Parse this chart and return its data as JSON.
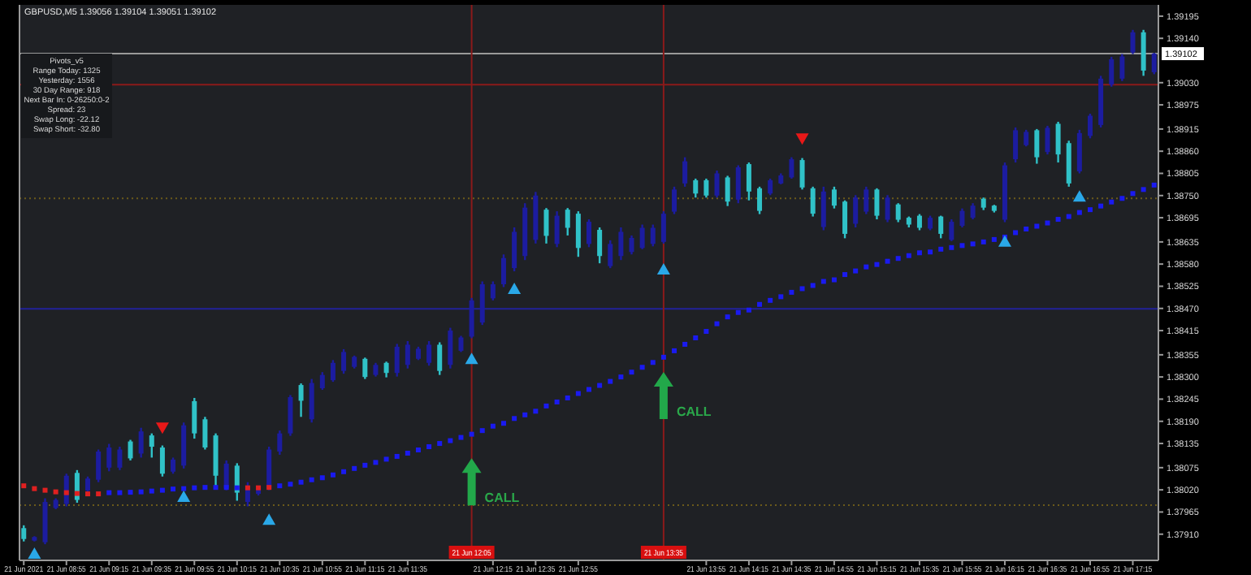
{
  "chart_data": {
    "type": "candlestick",
    "title": "GBPUSD,M5  1.39056 1.39104 1.39051 1.39102",
    "xlim": [
      "2021-06-21T08:33",
      "2021-06-21T17:27"
    ],
    "xticks": [
      {
        "value": "2021-06-21T08:35",
        "label": "21 Jun 2021"
      },
      {
        "value": "2021-06-21T08:55",
        "label": "21 Jun 08:55"
      },
      {
        "value": "2021-06-21T09:15",
        "label": "21 Jun 09:15"
      },
      {
        "value": "2021-06-21T09:35",
        "label": "21 Jun 09:35"
      },
      {
        "value": "2021-06-21T09:55",
        "label": "21 Jun 09:55"
      },
      {
        "value": "2021-06-21T10:15",
        "label": "21 Jun 10:15"
      },
      {
        "value": "2021-06-21T10:35",
        "label": "21 Jun 10:35"
      },
      {
        "value": "2021-06-21T10:55",
        "label": "21 Jun 10:55"
      },
      {
        "value": "2021-06-21T11:15",
        "label": "21 Jun 11:15"
      },
      {
        "value": "2021-06-21T11:35",
        "label": "21 Jun 11:35"
      },
      {
        "value": "2021-06-21T12:15",
        "label": "21 Jun 12:15"
      },
      {
        "value": "2021-06-21T12:35",
        "label": "21 Jun 12:35"
      },
      {
        "value": "2021-06-21T12:55",
        "label": "21 Jun 12:55"
      },
      {
        "value": "2021-06-21T13:55",
        "label": "21 Jun 13:55"
      },
      {
        "value": "2021-06-21T14:15",
        "label": "21 Jun 14:15"
      },
      {
        "value": "2021-06-21T14:35",
        "label": "21 Jun 14:35"
      },
      {
        "value": "2021-06-21T14:55",
        "label": "21 Jun 14:55"
      },
      {
        "value": "2021-06-21T15:15",
        "label": "21 Jun 15:15"
      },
      {
        "value": "2021-06-21T15:35",
        "label": "21 Jun 15:35"
      },
      {
        "value": "2021-06-21T15:55",
        "label": "21 Jun 15:55"
      },
      {
        "value": "2021-06-21T16:15",
        "label": "21 Jun 16:15"
      },
      {
        "value": "2021-06-21T16:35",
        "label": "21 Jun 16:35"
      },
      {
        "value": "2021-06-21T16:55",
        "label": "21 Jun 16:55"
      },
      {
        "value": "2021-06-21T17:15",
        "label": "21 Jun 17:15"
      }
    ],
    "ylim": [
      1.37845,
      1.39223
    ],
    "yticks": [
      1.39195,
      {
        "value": 1.3914,
        "label": "1.39140"
      },
      {
        "value": 1.3903,
        "label": "1.39030"
      },
      1.38975,
      1.38915,
      {
        "value": 1.3886,
        "label": "1.38860"
      },
      1.38805,
      {
        "value": 1.3875,
        "label": "1.38750"
      },
      1.38695,
      1.38635,
      {
        "value": 1.3858,
        "label": "1.38580"
      },
      1.38525,
      {
        "value": 1.3847,
        "label": "1.38470"
      },
      1.38415,
      1.38355,
      {
        "value": 1.383,
        "label": "1.38300"
      },
      1.38245,
      {
        "value": 1.3819,
        "label": "1.38190"
      },
      1.38135,
      1.38075,
      {
        "value": 1.3802,
        "label": "1.38020"
      },
      1.37965,
      {
        "value": 1.3791,
        "label": "1.37910"
      }
    ],
    "series": [
      {
        "color": "#1c1ca0",
        "x": [
          "2021-06-21T08:40",
          "2021-06-21T08:45",
          "2021-06-21T08:50",
          "2021-06-21T08:55",
          "2021-06-21T09:05",
          "2021-06-21T09:10",
          "2021-06-21T09:15",
          "2021-06-21T09:20",
          "2021-06-21T09:30",
          "2021-06-21T09:45",
          "2021-06-21T09:50",
          "2021-06-21T10:10",
          "2021-06-21T10:20",
          "2021-06-21T10:25",
          "2021-06-21T10:30",
          "2021-06-21T10:35",
          "2021-06-21T10:40",
          "2021-06-21T10:50",
          "2021-06-21T10:55",
          "2021-06-21T11:00",
          "2021-06-21T11:05",
          "2021-06-21T11:10",
          "2021-06-21T11:20",
          "2021-06-21T11:30",
          "2021-06-21T11:35",
          "2021-06-21T11:40",
          "2021-06-21T11:45",
          "2021-06-21T11:55",
          "2021-06-21T12:00",
          "2021-06-21T12:05",
          "2021-06-21T12:10",
          "2021-06-21T12:15",
          "2021-06-21T12:20",
          "2021-06-21T12:25",
          "2021-06-21T12:30",
          "2021-06-21T12:35",
          "2021-06-21T12:45",
          "2021-06-21T13:00",
          "2021-06-21T13:10",
          "2021-06-21T13:15",
          "2021-06-21T13:20",
          "2021-06-21T13:25",
          "2021-06-21T13:30",
          "2021-06-21T13:35",
          "2021-06-21T13:40",
          "2021-06-21T13:45",
          "2021-06-21T14:00",
          "2021-06-21T14:10",
          "2021-06-21T14:25",
          "2021-06-21T14:30",
          "2021-06-21T14:35",
          "2021-06-21T14:50",
          "2021-06-21T15:05",
          "2021-06-21T15:10",
          "2021-06-21T15:20",
          "2021-06-21T15:40",
          "2021-06-21T15:50",
          "2021-06-21T15:55",
          "2021-06-21T16:00",
          "2021-06-21T16:15",
          "2021-06-21T16:20",
          "2021-06-21T16:25",
          "2021-06-21T16:35",
          "2021-06-21T16:50",
          "2021-06-21T16:55",
          "2021-06-21T17:00",
          "2021-06-21T17:05",
          "2021-06-21T17:10",
          "2021-06-21T17:15",
          "2021-06-21T17:25"
        ],
        "ohlc": [
          [
            1.37894,
            1.37905,
            1.37892,
            1.37903
          ],
          [
            1.3789,
            1.37999,
            1.37885,
            1.3799
          ],
          [
            1.37975,
            1.37999,
            1.37972,
            1.37995
          ],
          [
            1.37985,
            1.3806,
            1.37979,
            1.38055
          ],
          [
            1.38018,
            1.38053,
            1.38013,
            1.38048
          ],
          [
            1.38045,
            1.3812,
            1.38039,
            1.38115
          ],
          [
            1.38075,
            1.38134,
            1.38066,
            1.38125
          ],
          [
            1.38075,
            1.38127,
            1.38069,
            1.3812
          ],
          [
            1.3811,
            1.38174,
            1.381,
            1.38165
          ],
          [
            1.38065,
            1.381,
            1.3806,
            1.38095
          ],
          [
            1.3808,
            1.38187,
            1.38073,
            1.3818
          ],
          [
            1.38025,
            1.38093,
            1.38019,
            1.38085
          ],
          [
            1.3799,
            1.38039,
            1.37979,
            1.3803
          ],
          [
            1.3801,
            1.38026,
            1.38006,
            1.3802
          ],
          [
            1.38025,
            1.38127,
            1.38019,
            1.3812
          ],
          [
            1.38115,
            1.38167,
            1.38107,
            1.3816
          ],
          [
            1.3816,
            1.38255,
            1.38154,
            1.3825
          ],
          [
            1.38195,
            1.38295,
            1.38187,
            1.38285
          ],
          [
            1.38272,
            1.38312,
            1.38268,
            1.38305
          ],
          [
            1.38292,
            1.38342,
            1.38288,
            1.38335
          ],
          [
            1.38315,
            1.38369,
            1.38308,
            1.38362
          ],
          [
            1.38325,
            1.38353,
            1.38321,
            1.3835
          ],
          [
            1.38305,
            1.38335,
            1.38301,
            1.3833
          ],
          [
            1.3831,
            1.38382,
            1.38301,
            1.38375
          ],
          [
            1.3833,
            1.38389,
            1.38321,
            1.3838
          ],
          [
            1.38345,
            1.38375,
            1.38342,
            1.3837
          ],
          [
            1.38335,
            1.38389,
            1.38328,
            1.3838
          ],
          [
            1.3833,
            1.38422,
            1.38321,
            1.38415
          ],
          [
            1.38365,
            1.38402,
            1.38362,
            1.38398
          ],
          [
            1.384,
            1.38496,
            1.38396,
            1.3849
          ],
          [
            1.38435,
            1.38537,
            1.38429,
            1.3853
          ],
          [
            1.38495,
            1.38537,
            1.3849,
            1.3853
          ],
          [
            1.3853,
            1.38604,
            1.38523,
            1.38595
          ],
          [
            1.3857,
            1.38671,
            1.38562,
            1.3866
          ],
          [
            1.386,
            1.38731,
            1.3859,
            1.3872
          ],
          [
            1.3864,
            1.38759,
            1.38631,
            1.3875
          ],
          [
            1.3863,
            1.38711,
            1.38622,
            1.387
          ],
          [
            1.3863,
            1.38691,
            1.38622,
            1.38685
          ],
          [
            1.38575,
            1.38639,
            1.3857,
            1.3863
          ],
          [
            1.386,
            1.38671,
            1.3859,
            1.3866
          ],
          [
            1.3861,
            1.38651,
            1.38604,
            1.38645
          ],
          [
            1.3862,
            1.38678,
            1.38617,
            1.3867
          ],
          [
            1.3863,
            1.38678,
            1.38624,
            1.3867
          ],
          [
            1.38635,
            1.38711,
            1.38631,
            1.38705
          ],
          [
            1.3871,
            1.38772,
            1.38704,
            1.38765
          ],
          [
            1.3878,
            1.38845,
            1.38772,
            1.38835
          ],
          [
            1.3875,
            1.38812,
            1.38745,
            1.38805
          ],
          [
            1.3874,
            1.38825,
            1.38731,
            1.3882
          ],
          [
            1.38755,
            1.38792,
            1.38751,
            1.38788
          ],
          [
            1.3878,
            1.38805,
            1.38778,
            1.388
          ],
          [
            1.38795,
            1.38845,
            1.38792,
            1.3884
          ],
          [
            1.38672,
            1.38772,
            1.38664,
            1.3876
          ],
          [
            1.3868,
            1.38751,
            1.38671,
            1.38745
          ],
          [
            1.3871,
            1.38772,
            1.38704,
            1.38765
          ],
          [
            1.3869,
            1.38751,
            1.38684,
            1.38745
          ],
          [
            1.38668,
            1.387,
            1.38664,
            1.38695
          ],
          [
            1.3864,
            1.38691,
            1.38637,
            1.38685
          ],
          [
            1.38675,
            1.38718,
            1.38671,
            1.38712
          ],
          [
            1.38695,
            1.38731,
            1.38691,
            1.38725
          ],
          [
            1.3869,
            1.38832,
            1.38684,
            1.38825
          ],
          [
            1.3884,
            1.38919,
            1.38832,
            1.38912
          ],
          [
            1.38875,
            1.38913,
            1.38872,
            1.38908
          ],
          [
            1.38858,
            1.38923,
            1.38852,
            1.38918
          ],
          [
            1.3881,
            1.38913,
            1.38805,
            1.38905
          ],
          [
            1.38898,
            1.38953,
            1.38892,
            1.38948
          ],
          [
            1.38925,
            1.39047,
            1.38919,
            1.3904
          ],
          [
            1.39025,
            1.39094,
            1.3902,
            1.39088
          ],
          [
            1.3904,
            1.39101,
            1.39034,
            1.39095
          ],
          [
            1.39105,
            1.39161,
            1.39101,
            1.39155
          ],
          [
            1.39056,
            1.39104,
            1.39051,
            1.39102
          ]
        ]
      },
      {
        "color": "#30c2c8",
        "x": [
          "2021-06-21T08:35",
          "2021-06-21T09:00",
          "2021-06-21T09:25",
          "2021-06-21T09:35",
          "2021-06-21T09:40",
          "2021-06-21T09:55",
          "2021-06-21T10:00",
          "2021-06-21T10:05",
          "2021-06-21T10:15",
          "2021-06-21T10:45",
          "2021-06-21T11:15",
          "2021-06-21T11:25",
          "2021-06-21T11:50",
          "2021-06-21T12:40",
          "2021-06-21T12:50",
          "2021-06-21T12:55",
          "2021-06-21T13:05",
          "2021-06-21T13:50",
          "2021-06-21T13:55",
          "2021-06-21T14:05",
          "2021-06-21T14:15",
          "2021-06-21T14:20",
          "2021-06-21T14:40",
          "2021-06-21T14:45",
          "2021-06-21T14:55",
          "2021-06-21T15:00",
          "2021-06-21T15:15",
          "2021-06-21T15:25",
          "2021-06-21T15:30",
          "2021-06-21T15:35",
          "2021-06-21T15:45",
          "2021-06-21T16:05",
          "2021-06-21T16:10",
          "2021-06-21T16:30",
          "2021-06-21T16:40",
          "2021-06-21T16:45",
          "2021-06-21T17:20"
        ],
        "ohlc": [
          [
            1.37925,
            1.37932,
            1.37892,
            1.37898
          ],
          [
            1.38062,
            1.38069,
            1.37988,
            1.37995
          ],
          [
            1.3814,
            1.38144,
            1.38093,
            1.38098
          ],
          [
            1.38155,
            1.3816,
            1.381,
            1.38127
          ],
          [
            1.38125,
            1.3813,
            1.38053,
            1.3806
          ],
          [
            1.3824,
            1.38248,
            1.38147,
            1.3816
          ],
          [
            1.38195,
            1.38201,
            1.3812,
            1.38125
          ],
          [
            1.38155,
            1.3816,
            1.38026,
            1.38055
          ],
          [
            1.3808,
            1.38086,
            1.37993,
            1.38013
          ],
          [
            1.3828,
            1.38284,
            1.38201,
            1.38241
          ],
          [
            1.38345,
            1.38348,
            1.38295,
            1.383
          ],
          [
            1.38335,
            1.38338,
            1.38299,
            1.3831
          ],
          [
            1.3838,
            1.38386,
            1.38305,
            1.38315
          ],
          [
            1.38715,
            1.38719,
            1.38631,
            1.3865
          ],
          [
            1.38715,
            1.38719,
            1.38651,
            1.3867
          ],
          [
            1.38705,
            1.38711,
            1.38598,
            1.3862
          ],
          [
            1.38665,
            1.38671,
            1.38582,
            1.386
          ],
          [
            1.38788,
            1.38792,
            1.38745,
            1.38755
          ],
          [
            1.38788,
            1.38792,
            1.38745,
            1.3875
          ],
          [
            1.38795,
            1.38799,
            1.38724,
            1.38735
          ],
          [
            1.38828,
            1.38832,
            1.38738,
            1.3876
          ],
          [
            1.38768,
            1.38772,
            1.38704,
            1.38712
          ],
          [
            1.38838,
            1.38843,
            1.38765,
            1.3877
          ],
          [
            1.38768,
            1.38772,
            1.38698,
            1.38705
          ],
          [
            1.38765,
            1.38772,
            1.38718,
            1.38725
          ],
          [
            1.38735,
            1.38738,
            1.38644,
            1.38655
          ],
          [
            1.38765,
            1.38768,
            1.38691,
            1.387
          ],
          [
            1.38728,
            1.38731,
            1.38684,
            1.3869
          ],
          [
            1.38695,
            1.38698,
            1.38671,
            1.38678
          ],
          [
            1.387,
            1.38704,
            1.38664,
            1.3867
          ],
          [
            1.38698,
            1.387,
            1.38644,
            1.38655
          ],
          [
            1.38742,
            1.38745,
            1.38714,
            1.3872
          ],
          [
            1.38725,
            1.38727,
            1.38708,
            1.38712
          ],
          [
            1.38912,
            1.38915,
            1.38829,
            1.38845
          ],
          [
            1.38928,
            1.38933,
            1.38832,
            1.38852
          ],
          [
            1.3888,
            1.38886,
            1.38772,
            1.3878
          ],
          [
            1.39155,
            1.39161,
            1.39047,
            1.3906
          ]
        ]
      },
      {
        "type": "scatter",
        "marker": "square",
        "color": "#1a1af0",
        "x": [
          "2021-06-21T09:15",
          "2021-06-21T09:20",
          "2021-06-21T09:25",
          "2021-06-21T09:30",
          "2021-06-21T09:35",
          "2021-06-21T09:40",
          "2021-06-21T09:45",
          "2021-06-21T09:50",
          "2021-06-21T09:55",
          "2021-06-21T10:00",
          "2021-06-21T10:05",
          "2021-06-21T10:10",
          "2021-06-21T10:15",
          "2021-06-21T10:35",
          "2021-06-21T10:40",
          "2021-06-21T10:45",
          "2021-06-21T10:50",
          "2021-06-21T10:55",
          "2021-06-21T11:00",
          "2021-06-21T11:05",
          "2021-06-21T11:10",
          "2021-06-21T11:15",
          "2021-06-21T11:20",
          "2021-06-21T11:25",
          "2021-06-21T11:30",
          "2021-06-21T11:35",
          "2021-06-21T11:40",
          "2021-06-21T11:45",
          "2021-06-21T11:50",
          "2021-06-21T11:55",
          "2021-06-21T12:00",
          "2021-06-21T12:05",
          "2021-06-21T12:10",
          "2021-06-21T12:15",
          "2021-06-21T12:20",
          "2021-06-21T12:25",
          "2021-06-21T12:30",
          "2021-06-21T12:35",
          "2021-06-21T12:40",
          "2021-06-21T12:45",
          "2021-06-21T12:50",
          "2021-06-21T12:55",
          "2021-06-21T13:00",
          "2021-06-21T13:05",
          "2021-06-21T13:10",
          "2021-06-21T13:15",
          "2021-06-21T13:20",
          "2021-06-21T13:25",
          "2021-06-21T13:30",
          "2021-06-21T13:35",
          "2021-06-21T13:40",
          "2021-06-21T13:45",
          "2021-06-21T13:50",
          "2021-06-21T13:55",
          "2021-06-21T14:00",
          "2021-06-21T14:05",
          "2021-06-21T14:10",
          "2021-06-21T14:15",
          "2021-06-21T14:20",
          "2021-06-21T14:25",
          "2021-06-21T14:30",
          "2021-06-21T14:35",
          "2021-06-21T14:40",
          "2021-06-21T14:45",
          "2021-06-21T14:50",
          "2021-06-21T14:55",
          "2021-06-21T15:00",
          "2021-06-21T15:05",
          "2021-06-21T15:10",
          "2021-06-21T15:15",
          "2021-06-21T15:20",
          "2021-06-21T15:25",
          "2021-06-21T15:30",
          "2021-06-21T15:35",
          "2021-06-21T15:40",
          "2021-06-21T15:45",
          "2021-06-21T15:50",
          "2021-06-21T15:55",
          "2021-06-21T16:00",
          "2021-06-21T16:05",
          "2021-06-21T16:10",
          "2021-06-21T16:15",
          "2021-06-21T16:20",
          "2021-06-21T16:25",
          "2021-06-21T16:30",
          "2021-06-21T16:35",
          "2021-06-21T16:40",
          "2021-06-21T16:45",
          "2021-06-21T16:50",
          "2021-06-21T16:55",
          "2021-06-21T17:00",
          "2021-06-21T17:05",
          "2021-06-21T17:10",
          "2021-06-21T17:15",
          "2021-06-21T17:20",
          "2021-06-21T17:25"
        ],
        "values": [
          1.38013,
          1.38013,
          1.38014,
          1.38015,
          1.38017,
          1.38019,
          1.38022,
          1.38023,
          1.38025,
          1.38026,
          1.38026,
          1.38026,
          1.38025,
          1.3803,
          1.38034,
          1.38039,
          1.38045,
          1.3805,
          1.38057,
          1.38065,
          1.38073,
          1.38081,
          1.38088,
          1.38096,
          1.38103,
          1.38111,
          1.38119,
          1.38127,
          1.38135,
          1.38142,
          1.3815,
          1.38158,
          1.38167,
          1.38178,
          1.38185,
          1.38197,
          1.38206,
          1.38215,
          1.38228,
          1.38238,
          1.38248,
          1.38259,
          1.38269,
          1.38279,
          1.38289,
          1.383,
          1.38312,
          1.38324,
          1.38336,
          1.38349,
          1.38365,
          1.38381,
          1.38397,
          1.38413,
          1.38432,
          1.38449,
          1.3846,
          1.38466,
          1.3848,
          1.3849,
          1.38499,
          1.3851,
          1.38519,
          1.38527,
          1.38537,
          1.38541,
          1.38554,
          1.38563,
          1.38573,
          1.38579,
          1.38587,
          1.38594,
          1.38601,
          1.38608,
          1.3861,
          1.38617,
          1.38621,
          1.38626,
          1.3863,
          1.38635,
          1.38641,
          1.38647,
          1.38658,
          1.38667,
          1.38674,
          1.38682,
          1.38691,
          1.38698,
          1.38708,
          1.38715,
          1.38724,
          1.38734,
          1.38743,
          1.38755,
          1.38765,
          1.38776
        ]
      },
      {
        "type": "scatter",
        "marker": "square",
        "color": "#e02020",
        "x": [
          "2021-06-21T08:35",
          "2021-06-21T08:40",
          "2021-06-21T08:45",
          "2021-06-21T08:50",
          "2021-06-21T08:55",
          "2021-06-21T09:00",
          "2021-06-21T09:05",
          "2021-06-21T09:10",
          "2021-06-21T10:20",
          "2021-06-21T10:25",
          "2021-06-21T10:30"
        ],
        "values": [
          1.3803,
          1.38023,
          1.38019,
          1.38015,
          1.38013,
          1.38011,
          1.3801,
          1.3801,
          1.38025,
          1.38025,
          1.38026
        ]
      },
      {
        "type": "scatter",
        "marker": "triangle",
        "color": "#2aa8e8",
        "x": [
          "2021-06-21T08:40",
          "2021-06-21T09:50",
          "2021-06-21T10:30",
          "2021-06-21T12:05",
          "2021-06-21T12:25",
          "2021-06-21T13:35",
          "2021-06-21T16:15",
          "2021-06-21T16:50"
        ],
        "values": [
          1.37861,
          1.38002,
          1.37945,
          1.38344,
          1.38518,
          1.38566,
          1.38635,
          1.38747
        ]
      },
      {
        "type": "scatter",
        "marker": "triangle",
        "color": "#e81818",
        "x": [
          "2021-06-21T09:40",
          "2021-06-21T14:40"
        ],
        "values": [
          1.38175,
          1.38892
        ]
      }
    ],
    "ref_lines": [
      {
        "axis": "y",
        "value": 1.39102,
        "label": "1.39102",
        "color": "#9a9a9a"
      },
      {
        "axis": "y",
        "value": 1.39025,
        "color": "#8b1a1a"
      },
      {
        "axis": "y",
        "value": 1.38743,
        "color": "#6b5a1a",
        "line_style": "dotted"
      },
      {
        "axis": "y",
        "value": 1.38469,
        "color": "#22229a"
      },
      {
        "axis": "y",
        "value": 1.37982,
        "color": "#6b5a1a",
        "line_style": "dotted"
      },
      {
        "axis": "x",
        "value": "2021-06-21T12:05",
        "label": "21 Jun 12:05",
        "color": "#8b1a1a"
      },
      {
        "axis": "x",
        "value": "2021-06-21T13:35",
        "label": "21 Jun 13:35",
        "color": "#8b1a1a"
      }
    ],
    "annotations": [
      "Pivots_v5",
      "Range Today: 1325",
      "Yesterday: 1556",
      "30 Day Range: 918",
      "Next Bar In: 0-26250:0-2",
      "Spread: 23",
      "Swap Long: -22.12",
      "Swap Short: -32.80",
      {
        "text": "CALL",
        "x": "2021-06-21T12:05",
        "y": 1.38038
      },
      {
        "text": "CALL",
        "x": "2021-06-21T13:35",
        "y": 1.38252
      }
    ]
  }
}
